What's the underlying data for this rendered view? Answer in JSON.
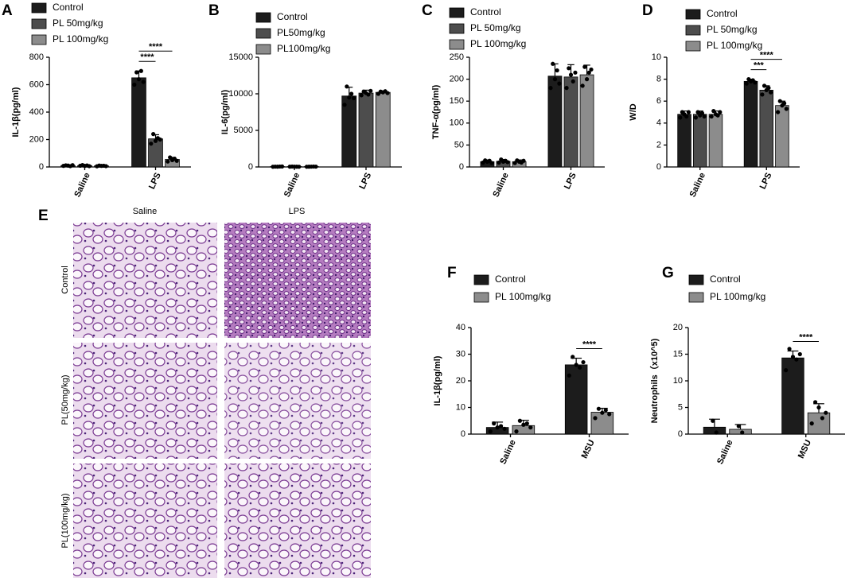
{
  "chart_data": [
    {
      "type": "bar",
      "panel": "A",
      "y_label": "IL-1β(pg/ml)",
      "categories": [
        "Saline",
        "LPS"
      ],
      "ylim": [
        0,
        800
      ],
      "yticks": [
        0,
        200,
        400,
        600,
        800
      ],
      "series": [
        {
          "name": "Control",
          "color": "#1c1c1c",
          "values": [
            10,
            650
          ],
          "errors": [
            5,
            50
          ],
          "points": [
            [
              8,
              12,
              10,
              6,
              13
            ],
            [
              600,
              690,
              640,
              700,
              620
            ]
          ]
        },
        {
          "name": "PL 50mg/kg",
          "color": "#4d4d4d",
          "values": [
            10,
            205
          ],
          "errors": [
            5,
            30
          ],
          "points": [
            [
              9,
              14,
              8,
              11,
              6
            ],
            [
              170,
              240,
              190,
              210,
              200
            ]
          ]
        },
        {
          "name": "PL 100mg/kg",
          "color": "#8c8c8c",
          "values": [
            8,
            55
          ],
          "errors": [
            4,
            15
          ],
          "points": [
            [
              5,
              10,
              8,
              9,
              6
            ],
            [
              40,
              70,
              50,
              60,
              45
            ]
          ]
        }
      ],
      "significance": [
        {
          "category": 1,
          "from": 0,
          "to": 1,
          "label": "****"
        },
        {
          "category": 1,
          "from": 0,
          "to": 2,
          "label": "****"
        }
      ]
    },
    {
      "type": "bar",
      "panel": "B",
      "y_label": "IL-6(pg/ml)",
      "categories": [
        "Saline",
        "LPS"
      ],
      "ylim": [
        0,
        15000
      ],
      "yticks": [
        0,
        5000,
        10000,
        15000
      ],
      "series": [
        {
          "name": "Control",
          "color": "#1c1c1c",
          "values": [
            50,
            9700
          ],
          "errors": [
            30,
            1200
          ],
          "points": [
            [
              30,
              50,
              40,
              60,
              70
            ],
            [
              8500,
              11000,
              9500,
              10000,
              9400
            ]
          ]
        },
        {
          "name": "PL50mg/kg",
          "color": "#4d4d4d",
          "values": [
            50,
            10100
          ],
          "errors": [
            30,
            400
          ],
          "points": [
            [
              40,
              60,
              50,
              40,
              30
            ],
            [
              9800,
              10300,
              10100,
              9900,
              10400
            ]
          ]
        },
        {
          "name": "PL100mg/kg",
          "color": "#8c8c8c",
          "values": [
            50,
            10200
          ],
          "errors": [
            30,
            200
          ],
          "points": [
            [
              30,
              40,
              50,
              60,
              50
            ],
            [
              10000,
              10300,
              10200,
              10350,
              10100
            ]
          ]
        }
      ],
      "significance": []
    },
    {
      "type": "bar",
      "panel": "C",
      "y_label": "TNF-α(pg/ml)",
      "categories": [
        "Saline",
        "LPS"
      ],
      "ylim": [
        0,
        250
      ],
      "yticks": [
        0,
        50,
        100,
        150,
        200,
        250
      ],
      "series": [
        {
          "name": "Control",
          "color": "#1c1c1c",
          "values": [
            12,
            207
          ],
          "errors": [
            4,
            28
          ],
          "points": [
            [
              10,
              15,
              12,
              14,
              9
            ],
            [
              180,
              235,
              200,
              220,
              190
            ]
          ]
        },
        {
          "name": "PL 50mg/kg",
          "color": "#4d4d4d",
          "values": [
            13,
            205
          ],
          "errors": [
            4,
            28
          ],
          "points": [
            [
              10,
              17,
              12,
              14,
              11
            ],
            [
              180,
              225,
              210,
              195,
              215
            ]
          ]
        },
        {
          "name": "PL 100mg/kg",
          "color": "#8c8c8c",
          "values": [
            12,
            210
          ],
          "errors": [
            4,
            22
          ],
          "points": [
            [
              9,
              15,
              12,
              10,
              14
            ],
            [
              185,
              228,
              200,
              215,
              222
            ]
          ]
        }
      ],
      "significance": []
    },
    {
      "type": "bar",
      "panel": "D",
      "y_label": "W/D",
      "categories": [
        "Saline",
        "LPS"
      ],
      "ylim": [
        0,
        10
      ],
      "yticks": [
        0,
        2,
        4,
        6,
        8,
        10
      ],
      "series": [
        {
          "name": "Control",
          "color": "#1c1c1c",
          "values": [
            4.8,
            7.8
          ],
          "errors": [
            0.3,
            0.2
          ],
          "points": [
            [
              4.5,
              5.0,
              4.8,
              4.6,
              5.0
            ],
            [
              7.6,
              8.0,
              7.8,
              7.9,
              7.7
            ]
          ]
        },
        {
          "name": "PL 50mg/kg",
          "color": "#4d4d4d",
          "values": [
            4.8,
            7.0
          ],
          "errors": [
            0.3,
            0.4
          ],
          "points": [
            [
              4.5,
              5.0,
              4.7,
              4.9,
              4.6
            ],
            [
              6.6,
              7.4,
              7.0,
              7.2,
              6.8
            ]
          ]
        },
        {
          "name": "PL 100mg/kg",
          "color": "#8c8c8c",
          "values": [
            4.8,
            5.6
          ],
          "errors": [
            0.3,
            0.4
          ],
          "points": [
            [
              4.6,
              5.1,
              4.8,
              4.7,
              5.0
            ],
            [
              5.0,
              6.0,
              5.6,
              5.8,
              5.3
            ]
          ]
        }
      ],
      "significance": [
        {
          "category": 1,
          "from": 0,
          "to": 1,
          "label": "***"
        },
        {
          "category": 1,
          "from": 0,
          "to": 2,
          "label": "****"
        }
      ]
    },
    {
      "type": "bar",
      "panel": "F",
      "y_label": "IL-1β(pg/ml)",
      "categories": [
        "Saline",
        "MSU"
      ],
      "ylim": [
        0,
        40
      ],
      "yticks": [
        0,
        10,
        20,
        30,
        40
      ],
      "series": [
        {
          "name": "Control",
          "color": "#1c1c1c",
          "values": [
            2.5,
            26
          ],
          "errors": [
            2,
            2.5
          ],
          "points": [
            [
              1,
              4,
              2.5,
              3,
              2
            ],
            [
              22,
              29,
              26,
              25,
              27
            ]
          ]
        },
        {
          "name": "PL 100mg/kg",
          "color": "#8c8c8c",
          "values": [
            3.2,
            8.2
          ],
          "errors": [
            2,
            1.5
          ],
          "points": [
            [
              1,
              5,
              3.5,
              4,
              2.5
            ],
            [
              6,
              9.5,
              8,
              9,
              7.5
            ]
          ]
        }
      ],
      "significance": [
        {
          "category": 1,
          "from": 0,
          "to": 1,
          "label": "****"
        }
      ]
    },
    {
      "type": "bar",
      "panel": "G",
      "y_label": "Neutrophils（x10^5)",
      "categories": [
        "Saline",
        "MSU"
      ],
      "ylim": [
        0,
        20
      ],
      "yticks": [
        0,
        5,
        10,
        15,
        20
      ],
      "series": [
        {
          "name": "Control",
          "color": "#1c1c1c",
          "values": [
            1.3,
            14.3
          ],
          "errors": [
            1.5,
            1.3
          ],
          "points": [
            [
              2.5,
              0.3
            ],
            [
              12,
              16,
              14.5,
              14,
              15
            ]
          ]
        },
        {
          "name": "PL 100mg/kg",
          "color": "#8c8c8c",
          "values": [
            0.9,
            4
          ],
          "errors": [
            0.9,
            1.7
          ],
          "points": [
            [
              1.5,
              0.3
            ],
            [
              2,
              6,
              5,
              3,
              4
            ]
          ]
        }
      ],
      "significance": [
        {
          "category": 1,
          "from": 0,
          "to": 1,
          "label": "****"
        }
      ]
    }
  ],
  "histology": {
    "panel": "E",
    "columns": [
      "Saline",
      "LPS"
    ],
    "rows": [
      "Control",
      "PL(50mg/kg)",
      "PL(100mg/kg)"
    ]
  }
}
